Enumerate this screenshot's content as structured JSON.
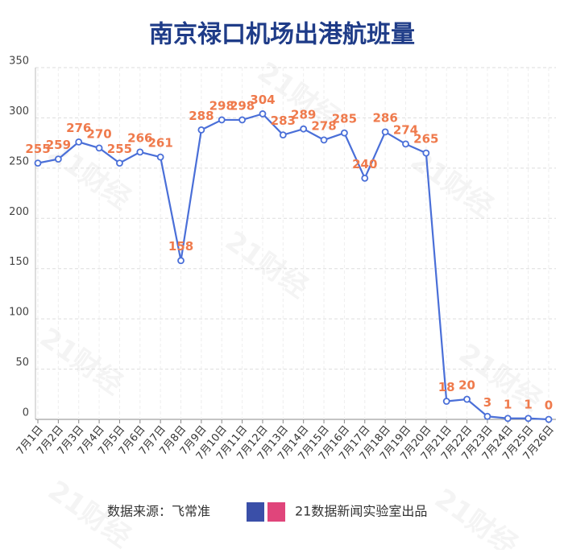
{
  "chart_data": {
    "type": "line",
    "title": "南京禄口机场出港航班量",
    "categories": [
      "7月1日",
      "7月2日",
      "7月3日",
      "7月4日",
      "7月5日",
      "7月6日",
      "7月7日",
      "7月8日",
      "7月9日",
      "7月10日",
      "7月11日",
      "7月12日",
      "7月13日",
      "7月14日",
      "7月15日",
      "7月16日",
      "7月17日",
      "7月18日",
      "7月19日",
      "7月20日",
      "7月21日",
      "7月22日",
      "7月23日",
      "7月24日",
      "7月25日",
      "7月26日"
    ],
    "values": [
      255,
      259,
      276,
      270,
      255,
      266,
      261,
      158,
      288,
      298,
      298,
      304,
      283,
      289,
      278,
      285,
      240,
      286,
      274,
      265,
      18,
      20,
      3,
      1,
      1,
      0
    ],
    "color": "#4a6fd8",
    "label_color": "#ef7a4c",
    "ylim": [
      0,
      350
    ],
    "yticks": [
      0,
      50,
      100,
      150,
      200,
      250,
      300,
      350
    ],
    "grid": true,
    "source": "数据来源：飞常准",
    "credit": "21数据新闻实验室出品",
    "watermark": "21财经"
  }
}
